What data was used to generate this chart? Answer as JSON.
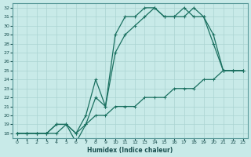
{
  "xlabel": "Humidex (Indice chaleur)",
  "bg_color": "#c8eae8",
  "grid_color": "#b0d8d5",
  "line_color": "#1a7060",
  "xlim": [
    -0.5,
    23.5
  ],
  "ylim": [
    17.5,
    32.5
  ],
  "yticks": [
    18,
    19,
    20,
    21,
    22,
    23,
    24,
    25,
    26,
    27,
    28,
    29,
    30,
    31,
    32
  ],
  "xticks": [
    0,
    1,
    2,
    3,
    4,
    5,
    6,
    7,
    8,
    9,
    10,
    11,
    12,
    13,
    14,
    15,
    16,
    17,
    18,
    19,
    20,
    21,
    22,
    23
  ],
  "curve_linear_x": [
    0,
    1,
    2,
    3,
    4,
    5,
    6,
    7,
    8,
    9,
    10,
    11,
    12,
    13,
    14,
    15,
    16,
    17,
    18,
    19,
    20,
    21,
    22,
    23
  ],
  "curve_linear_y": [
    18,
    18,
    18,
    18,
    18,
    19,
    18,
    19,
    20,
    20,
    21,
    21,
    21,
    22,
    22,
    22,
    23,
    23,
    23,
    24,
    24,
    25,
    25,
    25
  ],
  "curve_a_x": [
    0,
    1,
    2,
    3,
    4,
    5,
    6,
    7,
    8,
    9,
    10,
    11,
    12,
    13,
    14,
    15,
    16,
    17,
    18,
    19,
    20,
    21,
    22,
    23
  ],
  "curve_a_y": [
    18,
    18,
    18,
    18,
    19,
    19,
    18,
    20,
    24,
    21,
    27,
    29,
    30,
    31,
    32,
    31,
    31,
    31,
    32,
    31,
    29,
    25,
    25,
    25
  ],
  "curve_b_x": [
    0,
    1,
    2,
    3,
    4,
    5,
    6,
    7,
    8,
    9,
    10,
    11,
    12,
    13,
    14,
    15,
    16,
    17,
    18,
    19,
    20,
    21,
    22,
    23
  ],
  "curve_b_y": [
    18,
    18,
    18,
    18,
    19,
    19,
    17,
    19,
    22,
    21,
    29,
    31,
    31,
    32,
    32,
    31,
    31,
    32,
    31,
    31,
    28,
    25,
    25,
    25
  ]
}
